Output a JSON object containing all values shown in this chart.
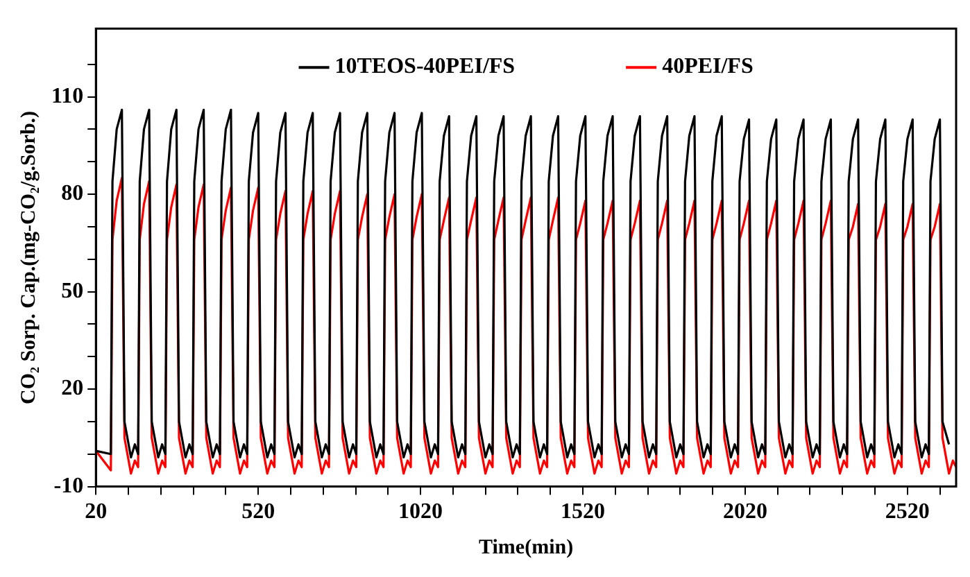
{
  "chart_data": {
    "type": "line",
    "xlabel": "Time(min)",
    "ylabel": "CO₂ Sorp. Cap.(mg-CO₂/g.Sorb.)",
    "xlim": [
      20,
      2670
    ],
    "ylim": [
      -10,
      131
    ],
    "xticks": [
      20,
      {
        "value": 120,
        "label": null
      },
      {
        "value": 220,
        "label": null
      },
      {
        "value": 320,
        "label": null
      },
      {
        "value": 420,
        "label": null
      },
      520,
      {
        "value": 620,
        "label": null
      },
      {
        "value": 720,
        "label": null
      },
      {
        "value": 820,
        "label": null
      },
      {
        "value": 920,
        "label": null
      },
      1020,
      {
        "value": 1120,
        "label": null
      },
      {
        "value": 1220,
        "label": null
      },
      {
        "value": 1320,
        "label": null
      },
      {
        "value": 1420,
        "label": null
      },
      1520,
      {
        "value": 1620,
        "label": null
      },
      {
        "value": 1720,
        "label": null
      },
      {
        "value": 1820,
        "label": null
      },
      {
        "value": 1920,
        "label": null
      },
      2020,
      {
        "value": 2120,
        "label": null
      },
      {
        "value": 2220,
        "label": null
      },
      {
        "value": 2320,
        "label": null
      },
      {
        "value": 2420,
        "label": null
      },
      2520,
      {
        "value": 2620,
        "label": null
      }
    ],
    "yticks": [
      -10,
      {
        "value": 0,
        "label": null
      },
      {
        "value": 10,
        "label": null
      },
      20,
      {
        "value": 30,
        "label": null
      },
      {
        "value": 40,
        "label": null
      },
      50,
      {
        "value": 60,
        "label": null
      },
      {
        "value": 70,
        "label": null
      },
      80,
      {
        "value": 90,
        "label": null
      },
      {
        "value": 100,
        "label": null
      },
      110,
      {
        "value": 120,
        "label": null
      }
    ],
    "legend": "top",
    "marker": "none",
    "line_style": "solid",
    "x": [
      20,
      66,
      71,
      84,
      100,
      108,
      128,
      140,
      150,
      155,
      168,
      184,
      192,
      212,
      224,
      234,
      239,
      252,
      268,
      276,
      296,
      308,
      318,
      323,
      336,
      352,
      360,
      380,
      392,
      402,
      407,
      420,
      436,
      444,
      464,
      476,
      486,
      491,
      504,
      520,
      528,
      548,
      560,
      570,
      575,
      588,
      604,
      612,
      632,
      644,
      654,
      659,
      672,
      688,
      696,
      716,
      728,
      738,
      743,
      756,
      772,
      780,
      800,
      812,
      822,
      827,
      840,
      856,
      864,
      884,
      896,
      906,
      911,
      924,
      940,
      948,
      968,
      980,
      990,
      995,
      1008,
      1024,
      1032,
      1052,
      1064,
      1074,
      1079,
      1092,
      1108,
      1116,
      1136,
      1148,
      1158,
      1163,
      1176,
      1192,
      1200,
      1220,
      1232,
      1242,
      1247,
      1260,
      1276,
      1284,
      1304,
      1316,
      1326,
      1331,
      1344,
      1360,
      1368,
      1388,
      1400,
      1410,
      1415,
      1428,
      1444,
      1452,
      1472,
      1484,
      1494,
      1499,
      1512,
      1528,
      1536,
      1556,
      1568,
      1578,
      1583,
      1596,
      1612,
      1620,
      1640,
      1652,
      1662,
      1667,
      1680,
      1696,
      1704,
      1724,
      1736,
      1746,
      1751,
      1764,
      1780,
      1788,
      1808,
      1820,
      1830,
      1835,
      1848,
      1864,
      1872,
      1892,
      1904,
      1914,
      1919,
      1932,
      1948,
      1956,
      1976,
      1988,
      1998,
      2003,
      2016,
      2032,
      2040,
      2060,
      2072,
      2082,
      2087,
      2100,
      2116,
      2124,
      2144,
      2156,
      2166,
      2171,
      2184,
      2200,
      2208,
      2228,
      2240,
      2250,
      2255,
      2268,
      2284,
      2292,
      2312,
      2324,
      2334,
      2339,
      2352,
      2368,
      2376,
      2396,
      2408,
      2418,
      2423,
      2436,
      2452,
      2460,
      2480,
      2492,
      2502,
      2507,
      2520,
      2536,
      2544,
      2564,
      2576,
      2586,
      2591,
      2604,
      2620,
      2628,
      2648,
      2660,
      2670
    ],
    "series": [
      {
        "name": "10TEOS-40PEI/FS",
        "color": "#000000",
        "values": [
          1,
          0,
          84,
          100,
          106,
          10,
          -1,
          3,
          0,
          84,
          100,
          106,
          10,
          -1,
          3,
          0,
          84,
          100,
          106,
          10,
          -1,
          3,
          0,
          84,
          100,
          106,
          10,
          -1,
          3,
          0,
          84,
          100,
          106,
          10,
          -1,
          3,
          0,
          84,
          99,
          105,
          10,
          -1,
          3,
          0,
          84,
          99,
          105,
          10,
          -1,
          3,
          0,
          84,
          99,
          105,
          10,
          -1,
          3,
          0,
          84,
          99,
          105,
          10,
          -1,
          3,
          0,
          84,
          99,
          105,
          10,
          -1,
          3,
          0,
          84,
          99,
          105,
          10,
          -1,
          3,
          0,
          84,
          99,
          105,
          10,
          -1,
          3,
          0,
          84,
          98,
          104,
          10,
          -1,
          3,
          0,
          84,
          98,
          104,
          10,
          -1,
          3,
          0,
          84,
          98,
          104,
          10,
          -1,
          3,
          0,
          84,
          98,
          104,
          10,
          -1,
          3,
          0,
          84,
          98,
          104,
          10,
          -1,
          3,
          0,
          84,
          98,
          104,
          10,
          -1,
          3,
          0,
          84,
          98,
          104,
          10,
          -1,
          3,
          0,
          84,
          98,
          104,
          10,
          -1,
          3,
          0,
          84,
          98,
          104,
          10,
          -1,
          3,
          0,
          84,
          98,
          104,
          10,
          -1,
          3,
          0,
          84,
          98,
          104,
          10,
          -1,
          3,
          0,
          84,
          97,
          103,
          10,
          -1,
          3,
          0,
          84,
          97,
          103,
          10,
          -1,
          3,
          0,
          84,
          97,
          103,
          10,
          -1,
          3,
          0,
          84,
          97,
          103,
          10,
          -1,
          3,
          0,
          84,
          97,
          103,
          10,
          -1,
          3,
          0,
          84,
          97,
          103,
          10,
          -1,
          3,
          0,
          84,
          97,
          103,
          10,
          -1,
          3,
          0,
          84,
          97,
          103,
          10,
          3,
          null,
          null
        ]
      },
      {
        "name": "40PEI/FS",
        "color": "#ff0000",
        "values": [
          1,
          -5,
          66,
          78,
          85,
          5,
          -6,
          -2,
          -4,
          66,
          77,
          84,
          5,
          -6,
          -2,
          -4,
          66,
          76,
          83,
          5,
          -6,
          -2,
          -4,
          66,
          76,
          83,
          5,
          -6,
          -2,
          -4,
          66,
          75,
          82,
          5,
          -6,
          -2,
          -4,
          66,
          75,
          82,
          5,
          -6,
          -2,
          -4,
          66,
          74,
          81,
          5,
          -6,
          -2,
          -4,
          66,
          74,
          81,
          5,
          -6,
          -2,
          -4,
          66,
          74,
          81,
          5,
          -6,
          -2,
          -4,
          66,
          73,
          80,
          5,
          -6,
          -2,
          -4,
          66,
          73,
          80,
          5,
          -6,
          -2,
          -4,
          66,
          73,
          80,
          5,
          -6,
          -2,
          -4,
          66,
          72,
          79,
          5,
          -6,
          -2,
          -4,
          66,
          72,
          79,
          5,
          -6,
          -2,
          -4,
          66,
          72,
          79,
          5,
          -6,
          -2,
          -4,
          66,
          72,
          79,
          5,
          -6,
          -2,
          -4,
          66,
          72,
          79,
          5,
          -6,
          -2,
          -4,
          66,
          71,
          78,
          5,
          -6,
          -2,
          -4,
          66,
          71,
          78,
          5,
          -6,
          -2,
          -4,
          66,
          71,
          78,
          5,
          -6,
          -2,
          -4,
          66,
          71,
          78,
          5,
          -6,
          -2,
          -4,
          66,
          71,
          78,
          5,
          -6,
          -2,
          -4,
          66,
          71,
          78,
          5,
          -6,
          -2,
          -4,
          66,
          71,
          78,
          5,
          -6,
          -2,
          -4,
          66,
          71,
          78,
          5,
          -6,
          -2,
          -4,
          66,
          71,
          78,
          5,
          -6,
          -2,
          -4,
          66,
          71,
          78,
          5,
          -6,
          -2,
          -4,
          66,
          70,
          77,
          5,
          -6,
          -2,
          -4,
          66,
          70,
          77,
          5,
          -6,
          -2,
          -4,
          66,
          70,
          77,
          5,
          -6,
          -2,
          -4,
          66,
          70,
          77,
          5,
          -6,
          -2,
          -4
        ]
      }
    ]
  }
}
